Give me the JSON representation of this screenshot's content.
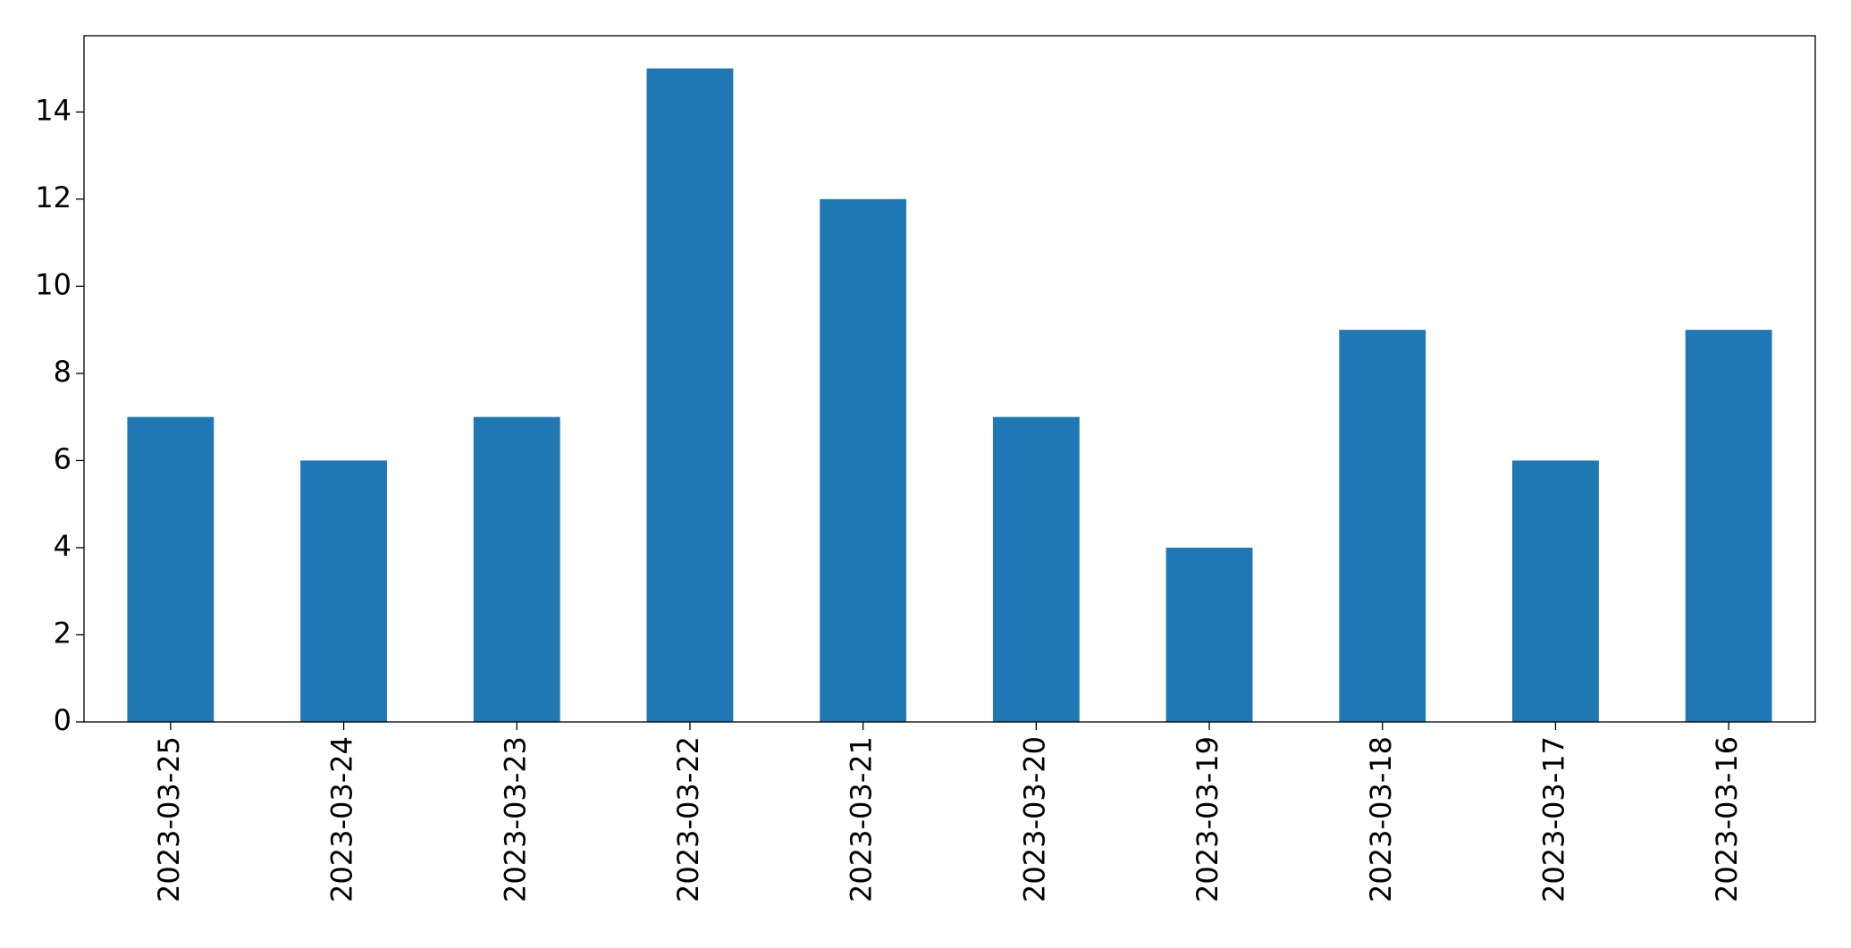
{
  "chart_data": {
    "type": "bar",
    "categories": [
      "2023-03-25",
      "2023-03-24",
      "2023-03-23",
      "2023-03-22",
      "2023-03-21",
      "2023-03-20",
      "2023-03-19",
      "2023-03-18",
      "2023-03-17",
      "2023-03-16"
    ],
    "values": [
      7,
      6,
      7,
      15,
      12,
      7,
      4,
      9,
      6,
      9
    ],
    "color": "#1f77b4",
    "ylim": [
      0,
      15.75
    ],
    "yticks": [
      0,
      2,
      4,
      6,
      8,
      10,
      12,
      14
    ],
    "grid": false
  }
}
